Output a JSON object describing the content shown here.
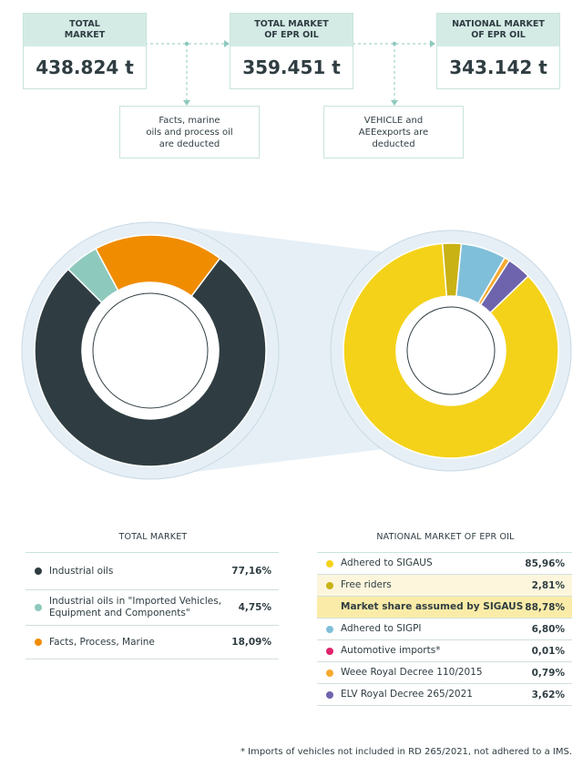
{
  "flow": {
    "total_market": {
      "title": "TOTAL\nMARKET",
      "value": "438.824 t"
    },
    "epr_market": {
      "title": "TOTAL MARKET\nOF EPR OIL",
      "value": "359.451 t"
    },
    "national_market": {
      "title": "NATIONAL MARKET\nOF EPR OIL",
      "value": "343.142 t"
    },
    "note1": "Facts, marine\noils and process oil\nare deducted",
    "note2": "VEHICLE and\nAEEexports are\ndeducted"
  },
  "colors": {
    "accent_teal": "#8ec9bd",
    "box_header": "#d4ebe5",
    "dark_slate": "#2f3d42",
    "sigaus_yellow": "#f4d21a",
    "free_riders_olive": "#c9b214",
    "sigpi_blue": "#80bfd9",
    "automotive_pink": "#e0246d",
    "weee_orange": "#f7a930",
    "elv_purple": "#6e64ad",
    "facts_orange": "#f08c00"
  },
  "chart_data": [
    {
      "type": "pie",
      "title": "TOTAL MARKET",
      "categories": [
        "Industrial oils",
        "Industrial oils in \"Imported Vehicles, Equipment and Components\"",
        "Facts, Process, Marine"
      ],
      "values": [
        77.16,
        4.75,
        18.09
      ],
      "labels": [
        "77,16%",
        "4,75%",
        "18,09%"
      ],
      "colors": [
        "#2f3d42",
        "#8ec9bd",
        "#f08c00"
      ]
    },
    {
      "type": "pie",
      "title": "NATIONAL MARKET OF EPR OIL",
      "categories": [
        "Adhered to SIGAUS",
        "Free riders",
        "Adhered to SIGPI",
        "Automotive imports*",
        "Weee Royal Decree 110/2015",
        "ELV Royal Decree 265/2021"
      ],
      "values": [
        85.96,
        2.81,
        6.8,
        0.01,
        0.79,
        3.62
      ],
      "labels": [
        "85,96%",
        "2,81%",
        "6,80%",
        "0,01%",
        "0,79%",
        "3,62%"
      ],
      "colors": [
        "#f4d21a",
        "#c9b214",
        "#80bfd9",
        "#e0246d",
        "#f7a930",
        "#6e64ad"
      ],
      "highlight": {
        "label": "Market share assumed by SIGAUS",
        "value": "88,78%"
      }
    }
  ],
  "tables": {
    "total": {
      "title": "TOTAL MARKET",
      "rows": [
        {
          "label": "Industrial oils",
          "value": "77,16%",
          "color": "#2f3d42"
        },
        {
          "label": "Industrial oils in \"Imported Vehicles, Equipment and Components\"",
          "value": "4,75%",
          "color": "#8ec9bd"
        },
        {
          "label": "Facts, Process, Marine",
          "value": "18,09%",
          "color": "#f08c00"
        }
      ]
    },
    "national": {
      "title": "NATIONAL MARKET OF EPR OIL",
      "rows": [
        {
          "label": "Adhered to SIGAUS",
          "value": "85,96%",
          "color": "#f4d21a"
        },
        {
          "label": "Free riders",
          "value": "2,81%",
          "color": "#c9b214"
        },
        {
          "label": "Market share assumed by SIGAUS",
          "value": "88,78%"
        },
        {
          "label": "Adhered to SIGPI",
          "value": "6,80%",
          "color": "#80bfd9"
        },
        {
          "label": "Automotive imports*",
          "value": "0,01%",
          "color": "#e0246d"
        },
        {
          "label": "Weee Royal Decree 110/2015",
          "value": "0,79%",
          "color": "#f7a930"
        },
        {
          "label": "ELV Royal Decree 265/2021",
          "value": "3,62%",
          "color": "#6e64ad"
        }
      ]
    }
  },
  "footnote": "* Imports of vehicles not included in RD 265/2021, not adhered to a IMS."
}
